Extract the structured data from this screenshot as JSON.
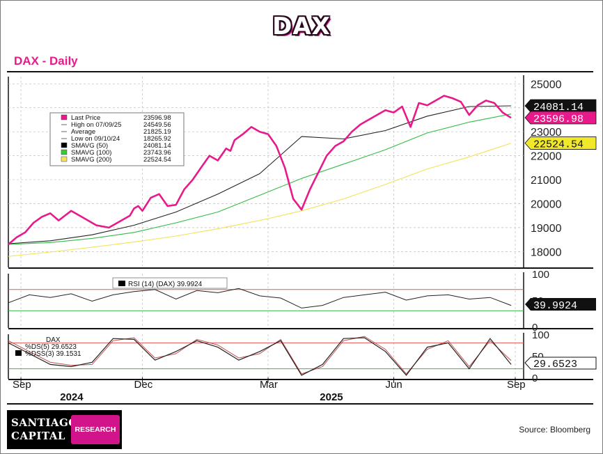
{
  "page": {
    "title": "DAX",
    "subtitle": "DAX - Daily",
    "source": "Source: Bloomberg"
  },
  "logo": {
    "line1": "SANTIAGO",
    "line2": "CAPITAL",
    "badge": "RESEARCH"
  },
  "colors": {
    "price": "#e8198a",
    "sma50": "#222222",
    "sma100": "#33bb44",
    "sma200": "#f2e35a",
    "upper_band": "#e05a5a",
    "lower_band": "#33bb44",
    "grid": "#bdbdbd"
  },
  "chart_data": [
    {
      "type": "line",
      "panel": "price",
      "legend": {
        "rows": [
          {
            "label": "Last Price",
            "value": "23596.98",
            "swatch": "price"
          },
          {
            "label": "High on 07/09/25",
            "value": "24549.56",
            "swatch": "marker"
          },
          {
            "label": "Average",
            "value": "21825.19",
            "swatch": "marker"
          },
          {
            "label": "Low on 09/10/24",
            "value": "18265.92",
            "swatch": "marker"
          },
          {
            "label": "SMAVG (50)",
            "value": "24081.14",
            "swatch": "sma50"
          },
          {
            "label": "SMAVG (100)",
            "value": "23743.96",
            "swatch": "sma100"
          },
          {
            "label": "SMAVG (200)",
            "value": "22524.54",
            "swatch": "sma200"
          }
        ]
      },
      "ylim": [
        17400,
        25300
      ],
      "y_ticks": [
        18000,
        19000,
        20000,
        21000,
        22000,
        23000,
        24000,
        25000
      ],
      "grid": true,
      "x_range": [
        0,
        12.3
      ],
      "badges": [
        {
          "value": "24081.14",
          "y": 24081.14,
          "style": "dark"
        },
        {
          "value": "23596.98",
          "y": 23596.98,
          "style": "pink"
        },
        {
          "value": "22524.54",
          "y": 22524.54,
          "style": "yellow"
        }
      ],
      "series": [
        {
          "color_key": "price",
          "x": [
            0,
            0.2,
            0.4,
            0.6,
            0.8,
            1.0,
            1.2,
            1.5,
            1.8,
            2.1,
            2.4,
            2.7,
            2.9,
            3.0,
            3.1,
            3.2,
            3.4,
            3.6,
            3.8,
            4.0,
            4.2,
            4.4,
            4.6,
            4.8,
            5.0,
            5.2,
            5.3,
            5.4,
            5.6,
            5.8,
            6.0,
            6.2,
            6.4,
            6.6,
            6.8,
            7.0,
            7.2,
            7.4,
            7.6,
            7.8,
            8.0,
            8.2,
            8.4,
            8.6,
            8.8,
            9.0,
            9.2,
            9.4,
            9.6,
            9.8,
            10.0,
            10.2,
            10.4,
            10.6,
            10.8,
            11.0,
            11.2,
            11.4,
            11.6,
            11.8,
            12.0
          ],
          "y": [
            18300,
            18600,
            18800,
            19200,
            19450,
            19600,
            19300,
            19700,
            19400,
            19100,
            19000,
            19300,
            19500,
            19800,
            19900,
            19700,
            20250,
            20400,
            19900,
            19950,
            20600,
            21000,
            21500,
            22000,
            21800,
            22300,
            22200,
            22650,
            22900,
            23200,
            23000,
            22900,
            22400,
            21500,
            20200,
            19750,
            20600,
            21300,
            22000,
            22400,
            22600,
            23000,
            23300,
            23500,
            23700,
            23900,
            23800,
            24050,
            23200,
            24200,
            24100,
            24300,
            24500,
            24400,
            24250,
            23700,
            24100,
            24300,
            24200,
            23800,
            23580
          ]
        },
        {
          "color_key": "sma50",
          "x": [
            0,
            1,
            2,
            3,
            4,
            5,
            6,
            7,
            8,
            9,
            10,
            11,
            12
          ],
          "y": [
            18330,
            18450,
            18700,
            19100,
            19650,
            20400,
            21250,
            22800,
            22700,
            23050,
            23650,
            24050,
            24080
          ]
        },
        {
          "color_key": "sma100",
          "x": [
            0,
            1,
            2,
            3,
            4,
            5,
            6,
            7,
            8,
            9,
            10,
            11,
            12
          ],
          "y": [
            18300,
            18380,
            18550,
            18800,
            19200,
            19650,
            20350,
            21050,
            21650,
            22250,
            22950,
            23400,
            23740
          ]
        },
        {
          "color_key": "sma200",
          "x": [
            0,
            1,
            2,
            3,
            4,
            5,
            6,
            7,
            8,
            9,
            10,
            11,
            12
          ],
          "y": [
            17800,
            17980,
            18180,
            18400,
            18650,
            18950,
            19300,
            19700,
            20200,
            20800,
            21450,
            21950,
            22520
          ]
        }
      ]
    },
    {
      "type": "line",
      "panel": "rsi",
      "legend_label": "RSI (14) (DAX) 39.9924",
      "ylim": [
        0,
        100
      ],
      "y_ticks": [
        0,
        50,
        100
      ],
      "bands": [
        70,
        30
      ],
      "badge": "39.9924",
      "series": [
        {
          "color_key": "sma50",
          "x": [
            0,
            0.5,
            1,
            1.5,
            2,
            2.5,
            3,
            3.5,
            4,
            4.5,
            5,
            5.5,
            6,
            6.5,
            7,
            7.5,
            8,
            8.5,
            9,
            9.5,
            10,
            10.5,
            11,
            11.5,
            12
          ],
          "y": [
            45,
            60,
            55,
            62,
            48,
            60,
            66,
            70,
            52,
            68,
            64,
            72,
            58,
            54,
            35,
            40,
            55,
            60,
            65,
            50,
            58,
            60,
            52,
            55,
            40
          ]
        }
      ]
    },
    {
      "type": "line",
      "panel": "stochastic",
      "legend_rows": [
        "DAX",
        "%DS(5) 29.6523",
        "%DSS(3) 39.1531"
      ],
      "ylim": [
        0,
        100
      ],
      "y_ticks": [
        0,
        50,
        100
      ],
      "bands": [
        80,
        20
      ],
      "badge": "29.6523",
      "series": [
        {
          "color_key": "sma50",
          "x": [
            0,
            0.5,
            1,
            1.5,
            2,
            2.5,
            3,
            3.5,
            4,
            4.5,
            5,
            5.5,
            6,
            6.5,
            7,
            7.5,
            8,
            8.5,
            9,
            9.5,
            10,
            10.5,
            11,
            11.5,
            12
          ],
          "y": [
            80,
            55,
            30,
            25,
            35,
            90,
            88,
            40,
            60,
            85,
            70,
            40,
            60,
            85,
            5,
            30,
            90,
            92,
            60,
            5,
            70,
            80,
            20,
            90,
            30
          ]
        },
        {
          "color_key": "upper_band",
          "x": [
            0,
            0.5,
            1,
            1.5,
            2,
            2.5,
            3,
            3.5,
            4,
            4.5,
            5,
            5.5,
            6,
            6.5,
            7,
            7.5,
            8,
            8.5,
            9,
            9.5,
            10,
            10.5,
            11,
            11.5,
            12
          ],
          "y": [
            85,
            60,
            35,
            28,
            30,
            85,
            92,
            45,
            55,
            88,
            75,
            45,
            55,
            88,
            8,
            25,
            85,
            95,
            65,
            8,
            65,
            85,
            25,
            85,
            39
          ]
        }
      ]
    }
  ],
  "x_axis": {
    "month_labels": [
      {
        "label": "Sep",
        "x": 0.3
      },
      {
        "label": "Dec",
        "x": 3.2
      },
      {
        "label": "Mar",
        "x": 6.2
      },
      {
        "label": "Jun",
        "x": 9.2
      },
      {
        "label": "Sep",
        "x": 12.1
      }
    ],
    "year_labels": [
      {
        "label": "2024",
        "x": 1.6
      },
      {
        "label": "2025",
        "x": 7.8
      }
    ]
  }
}
